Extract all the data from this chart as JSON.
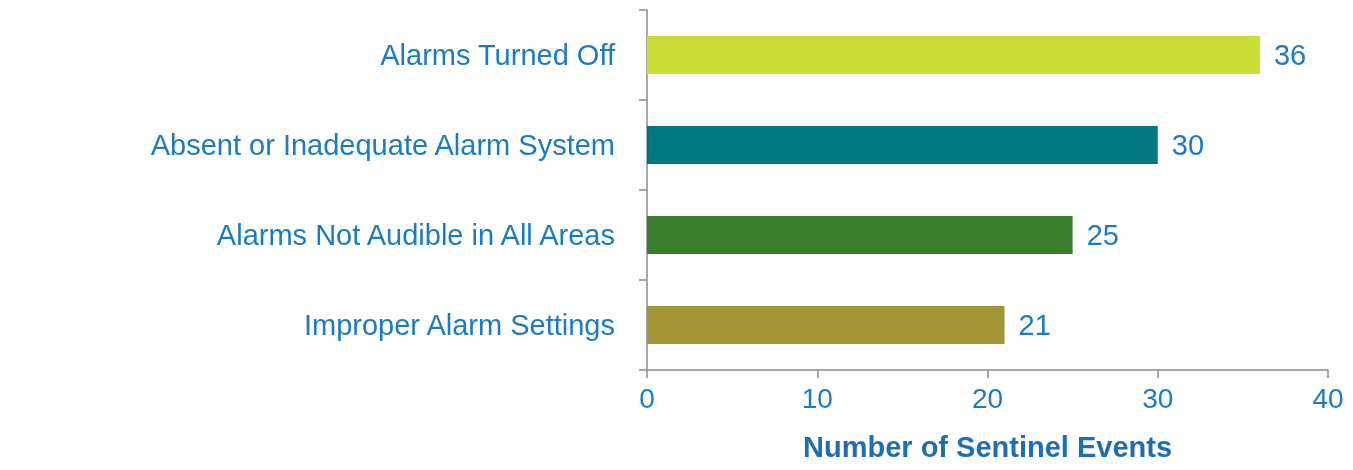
{
  "chart_data": {
    "type": "bar",
    "orientation": "horizontal",
    "categories": [
      "Alarms Turned Off",
      "Absent or Inadequate Alarm System",
      "Alarms Not Audible in All Areas",
      "Improper Alarm Settings"
    ],
    "values": [
      36,
      30,
      25,
      21
    ],
    "colors": [
      "#cbdd37",
      "#007880",
      "#3a7d2c",
      "#a39436"
    ],
    "xlabel": "Number of Sentinel Events",
    "xlim": [
      0,
      40
    ],
    "xticks": [
      0,
      10,
      20,
      30,
      40
    ],
    "data_labels": true,
    "grid": false
  }
}
